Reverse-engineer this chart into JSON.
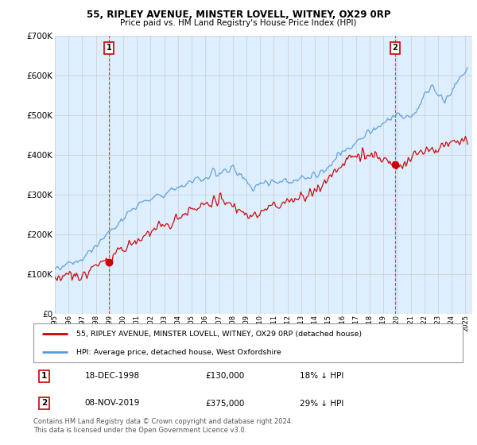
{
  "title1": "55, RIPLEY AVENUE, MINSTER LOVELL, WITNEY, OX29 0RP",
  "title2": "Price paid vs. HM Land Registry's House Price Index (HPI)",
  "legend_red": "55, RIPLEY AVENUE, MINSTER LOVELL, WITNEY, OX29 0RP (detached house)",
  "legend_blue": "HPI: Average price, detached house, West Oxfordshire",
  "annotation1_date": "18-DEC-1998",
  "annotation1_price": "£130,000",
  "annotation1_hpi": "18% ↓ HPI",
  "annotation2_date": "08-NOV-2019",
  "annotation2_price": "£375,000",
  "annotation2_hpi": "29% ↓ HPI",
  "footer": "Contains HM Land Registry data © Crown copyright and database right 2024.\nThis data is licensed under the Open Government Licence v3.0.",
  "ylim": [
    0,
    700000
  ],
  "yticks": [
    0,
    100000,
    200000,
    300000,
    400000,
    500000,
    600000,
    700000
  ],
  "ytick_labels": [
    "£0",
    "£100K",
    "£200K",
    "£300K",
    "£400K",
    "£500K",
    "£600K",
    "£700K"
  ],
  "red_color": "#cc0000",
  "blue_color": "#5599dd",
  "blue_fill_color": "#ddeeff",
  "bg_color": "#ffffff",
  "grid_color": "#cccccc",
  "marker1_x": 1998.96,
  "marker1_y": 130000,
  "marker2_x": 2019.85,
  "marker2_y": 375000,
  "xlim_start": 1995.0,
  "xlim_end": 2025.5
}
